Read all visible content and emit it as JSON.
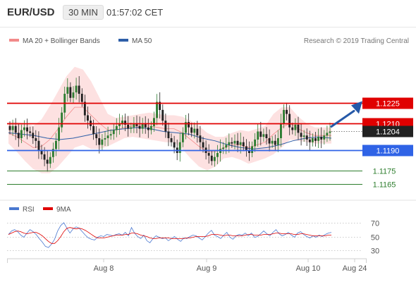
{
  "header": {
    "symbol": "EUR/USD",
    "interval": "30 MIN",
    "time": "01:57:02 CET"
  },
  "price_legend": {
    "ma20_label": "MA 20 + Bollinger Bands",
    "ma50_label": "MA 50",
    "copyright": "Research © 2019 Trading Central"
  },
  "rsi_legend": {
    "rsi_label": "RSI",
    "ma9_label": "9MA"
  },
  "colors": {
    "ma20": "#f28a8a",
    "band_fill": "#fde1e1",
    "ma50": "#2e5fa8",
    "up": "#2e7d32",
    "down": "#222222",
    "resistance": "#e00000",
    "support": "#2f63e6",
    "target": "#2d7d2d",
    "arrow": "#2659a8",
    "rsi": "#4a78d0",
    "rsi_ma": "#e00000"
  },
  "chart_data": [
    {
      "type": "candlestick",
      "instrument": "EUR/USD",
      "interval": "30 MIN",
      "ylim": [
        1.1155,
        1.1265
      ],
      "x_ticks": [
        "Aug 8",
        "Aug 9",
        "Aug 10",
        "Aug 24"
      ],
      "last_price": "1.1204",
      "candles_close_path": [
        1.1205,
        1.1208,
        1.1203,
        1.1199,
        1.1205,
        1.1207,
        1.1204,
        1.1203,
        1.1199,
        1.1197,
        1.119,
        1.1187,
        1.1183,
        1.118,
        1.1185,
        1.1191,
        1.1197,
        1.1207,
        1.1218,
        1.1232,
        1.1237,
        1.1229,
        1.1233,
        1.1238,
        1.1232,
        1.1226,
        1.1216,
        1.1212,
        1.1208,
        1.1202,
        1.1199,
        1.1194,
        1.1198,
        1.1199,
        1.1201,
        1.1202,
        1.1205,
        1.1208,
        1.121,
        1.1212,
        1.1209,
        1.1206,
        1.1207,
        1.121,
        1.1208,
        1.1206,
        1.121,
        1.1207,
        1.1205,
        1.1208,
        1.1214,
        1.1226,
        1.122,
        1.1212,
        1.1204,
        1.1199,
        1.1196,
        1.1192,
        1.1188,
        1.1196,
        1.1203,
        1.1211,
        1.1207,
        1.1203,
        1.1206,
        1.1201,
        1.1196,
        1.1192,
        1.1188,
        1.1186,
        1.1182,
        1.1185,
        1.1188,
        1.1191,
        1.1192,
        1.1194,
        1.1196,
        1.1195,
        1.1197,
        1.1194,
        1.1196,
        1.1193,
        1.119,
        1.1188,
        1.1193,
        1.1198,
        1.1204,
        1.12,
        1.1202,
        1.1199,
        1.1195,
        1.1197,
        1.1194,
        1.1199,
        1.121,
        1.122,
        1.1217,
        1.1207,
        1.1205,
        1.1209,
        1.1203,
        1.12,
        1.1201,
        1.1198,
        1.1196,
        1.1199,
        1.1197,
        1.12,
        1.1198,
        1.1201,
        1.1203,
        1.1204
      ],
      "ma50_path": [
        1.1203,
        1.1202,
        1.1201,
        1.1199,
        1.1198,
        1.1199,
        1.1201,
        1.1203,
        1.1205,
        1.1206,
        1.1207,
        1.1206,
        1.1204,
        1.1203,
        1.1202,
        1.1199,
        1.1197,
        1.1194,
        1.1192,
        1.1191,
        1.1192,
        1.1194,
        1.1197,
        1.1199,
        1.12,
        1.1199
      ],
      "ma20_path": [
        1.1203,
        1.12,
        1.1196,
        1.1192,
        1.1193,
        1.1198,
        1.1206,
        1.1215,
        1.1222,
        1.1222,
        1.1216,
        1.121,
        1.1205,
        1.1205,
        1.1207,
        1.1208,
        1.1208,
        1.1208,
        1.1207,
        1.1206,
        1.1206,
        1.1203,
        1.1198,
        1.1193,
        1.1189,
        1.1189,
        1.1192,
        1.1194,
        1.1194,
        1.1192,
        1.1194,
        1.1196,
        1.1202,
        1.1207,
        1.121,
        1.1206,
        1.1203,
        1.1201,
        1.1201,
        1.1201
      ],
      "band_halfwidth": [
        0.0008,
        0.0011,
        0.0014,
        0.0016,
        0.002,
        0.0025,
        0.0028,
        0.003,
        0.003,
        0.0028,
        0.0025,
        0.0019,
        0.0012,
        0.0009,
        0.0008,
        0.0008,
        0.0009,
        0.001,
        0.001,
        0.001,
        0.001,
        0.0012,
        0.0014,
        0.0015,
        0.0014,
        0.0011,
        0.0008,
        0.0009,
        0.0011,
        0.0012,
        0.0012,
        0.0012,
        0.0015,
        0.0015,
        0.0012,
        0.0009,
        0.0007,
        0.0006,
        0.0006,
        0.0006
      ],
      "levels": [
        {
          "name": "resistance-2",
          "value": 1.1225,
          "label": "1.1225",
          "kind": "resistance"
        },
        {
          "name": "resistance-1",
          "value": 1.121,
          "label": "1.1210",
          "kind": "resistance"
        },
        {
          "name": "support-1",
          "value": 1.119,
          "label": "1.1190",
          "kind": "support"
        },
        {
          "name": "target-1",
          "value": 1.1175,
          "label": "1.1175",
          "kind": "target"
        },
        {
          "name": "target-2",
          "value": 1.1165,
          "label": "1.1165",
          "kind": "target"
        }
      ],
      "forecast_arrow": {
        "from": 1.1204,
        "to": 1.1225
      }
    },
    {
      "type": "line",
      "title": "RSI",
      "y_ticks": [
        70,
        50,
        30
      ],
      "ylim": [
        22,
        78
      ],
      "rsi": [
        53,
        58,
        60,
        57,
        52,
        49,
        55,
        60,
        57,
        53,
        47,
        42,
        36,
        34,
        39,
        46,
        58,
        66,
        70,
        62,
        55,
        61,
        64,
        62,
        57,
        52,
        48,
        46,
        45,
        49,
        51,
        50,
        53,
        52,
        51,
        53,
        54,
        52,
        56,
        51,
        63,
        55,
        50,
        47,
        52,
        44,
        41,
        47,
        51,
        49,
        47,
        48,
        44,
        47,
        50,
        46,
        43,
        48,
        47,
        50,
        52,
        51,
        48,
        45,
        50,
        55,
        59,
        52,
        50,
        47,
        52,
        56,
        49,
        46,
        51,
        53,
        52,
        55,
        51,
        55,
        49,
        50,
        54,
        58,
        54,
        51,
        56,
        60,
        54,
        51,
        53,
        56,
        52,
        49,
        55,
        57,
        53,
        50,
        48,
        51,
        49,
        52,
        50,
        53,
        55,
        56
      ],
      "rsi_ma": [
        53,
        55,
        57,
        58,
        57,
        55,
        54,
        55,
        56,
        56,
        54,
        51,
        47,
        43,
        40,
        40,
        44,
        50,
        57,
        62,
        63,
        62,
        61,
        62,
        61,
        59,
        56,
        53,
        50,
        48,
        48,
        48,
        49,
        50,
        51,
        52,
        52,
        52,
        53,
        53,
        55,
        55,
        54,
        52,
        51,
        50,
        48,
        47,
        47,
        48,
        48,
        48,
        48,
        47,
        47,
        47,
        47,
        47,
        48,
        48,
        49,
        50,
        50,
        50,
        50,
        51,
        53,
        53,
        53,
        52,
        51,
        52,
        52,
        51,
        51,
        51,
        51,
        52,
        53,
        53,
        52,
        52,
        52,
        53,
        53,
        53,
        54,
        55,
        55,
        54,
        54,
        54,
        54,
        53,
        53,
        54,
        54,
        53,
        52,
        51,
        51,
        51,
        51,
        51,
        52,
        52
      ]
    }
  ]
}
